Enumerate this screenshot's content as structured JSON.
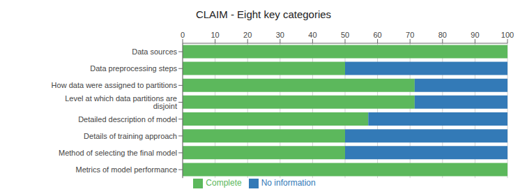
{
  "chart_data": {
    "type": "bar",
    "orientation": "horizontal",
    "stacked": true,
    "title": "CLAIM - Eight key categories",
    "categories": [
      "Data sources",
      "Data preprocessing steps",
      "How data were assigned to partitions",
      "Level at which data partitions are disjoint",
      "Detailed description of model",
      "Details of training approach",
      "Method of selecting the final model",
      "Metrics of model performance"
    ],
    "series": [
      {
        "name": "Complete",
        "color": "#5cb85c",
        "values": [
          100,
          50,
          71.43,
          71.43,
          57.14,
          50,
          50,
          100
        ]
      },
      {
        "name": "No information",
        "color": "#337ab7",
        "values": [
          0,
          50,
          28.57,
          28.57,
          42.86,
          50,
          50,
          0
        ]
      }
    ],
    "xlim": [
      0,
      100
    ],
    "xticks": [
      0,
      10,
      20,
      30,
      40,
      50,
      60,
      70,
      80,
      90,
      100
    ],
    "grid": true,
    "legend": "bottom"
  }
}
